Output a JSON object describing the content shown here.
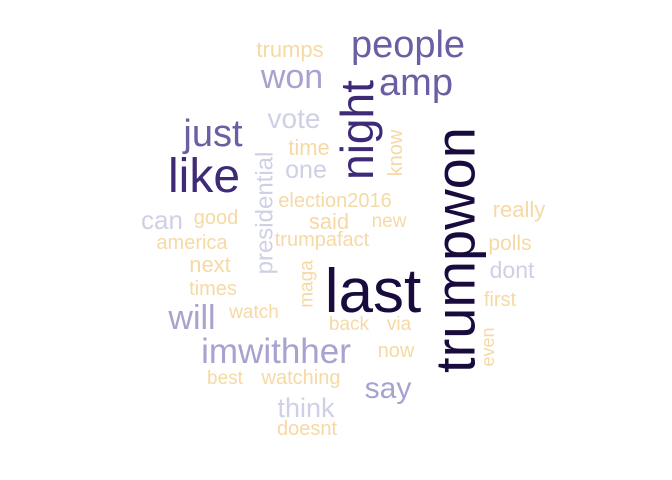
{
  "palette": {
    "darkest": "#1a0b3e",
    "dark": "#3f2a78",
    "mid": "#6b5ea2",
    "light": "#a7a3cf",
    "pale": "#cfd0e6",
    "cream": "#f6d9a4"
  },
  "words": [
    {
      "text": "trumpwon",
      "rank": 1,
      "tone": "darkest"
    },
    {
      "text": "last",
      "rank": 2,
      "tone": "darkest"
    },
    {
      "text": "night",
      "rank": 3,
      "tone": "dark"
    },
    {
      "text": "like",
      "rank": 4,
      "tone": "dark"
    },
    {
      "text": "people",
      "rank": 5,
      "tone": "mid"
    },
    {
      "text": "amp",
      "rank": 6,
      "tone": "mid"
    },
    {
      "text": "just",
      "rank": 7,
      "tone": "mid"
    },
    {
      "text": "won",
      "rank": 8,
      "tone": "light"
    },
    {
      "text": "imwithher",
      "rank": 9,
      "tone": "light"
    },
    {
      "text": "will",
      "rank": 10,
      "tone": "light"
    },
    {
      "text": "say",
      "rank": 11,
      "tone": "light"
    },
    {
      "text": "think",
      "rank": 12,
      "tone": "pale"
    },
    {
      "text": "vote",
      "rank": 13,
      "tone": "pale"
    },
    {
      "text": "presidential",
      "rank": 14,
      "tone": "pale"
    },
    {
      "text": "one",
      "rank": 15,
      "tone": "pale"
    },
    {
      "text": "can",
      "rank": 16,
      "tone": "pale"
    },
    {
      "text": "dont",
      "rank": 17,
      "tone": "pale"
    },
    {
      "text": "trumps",
      "rank": 18,
      "tone": "cream"
    },
    {
      "text": "time",
      "rank": 19,
      "tone": "cream"
    },
    {
      "text": "know",
      "rank": 20,
      "tone": "cream"
    },
    {
      "text": "election2016",
      "rank": 21,
      "tone": "cream"
    },
    {
      "text": "said",
      "rank": 22,
      "tone": "cream"
    },
    {
      "text": "new",
      "rank": 23,
      "tone": "cream"
    },
    {
      "text": "good",
      "rank": 24,
      "tone": "cream"
    },
    {
      "text": "america",
      "rank": 25,
      "tone": "cream"
    },
    {
      "text": "trumpafact",
      "rank": 26,
      "tone": "cream"
    },
    {
      "text": "really",
      "rank": 27,
      "tone": "cream"
    },
    {
      "text": "polls",
      "rank": 28,
      "tone": "cream"
    },
    {
      "text": "next",
      "rank": 29,
      "tone": "cream"
    },
    {
      "text": "times",
      "rank": 30,
      "tone": "cream"
    },
    {
      "text": "maga",
      "rank": 31,
      "tone": "cream"
    },
    {
      "text": "first",
      "rank": 32,
      "tone": "cream"
    },
    {
      "text": "watch",
      "rank": 33,
      "tone": "cream"
    },
    {
      "text": "back",
      "rank": 34,
      "tone": "cream"
    },
    {
      "text": "via",
      "rank": 35,
      "tone": "cream"
    },
    {
      "text": "even",
      "rank": 36,
      "tone": "cream"
    },
    {
      "text": "now",
      "rank": 37,
      "tone": "cream"
    },
    {
      "text": "best",
      "rank": 38,
      "tone": "cream"
    },
    {
      "text": "watching",
      "rank": 39,
      "tone": "cream"
    },
    {
      "text": "doesnt",
      "rank": 40,
      "tone": "cream"
    }
  ]
}
